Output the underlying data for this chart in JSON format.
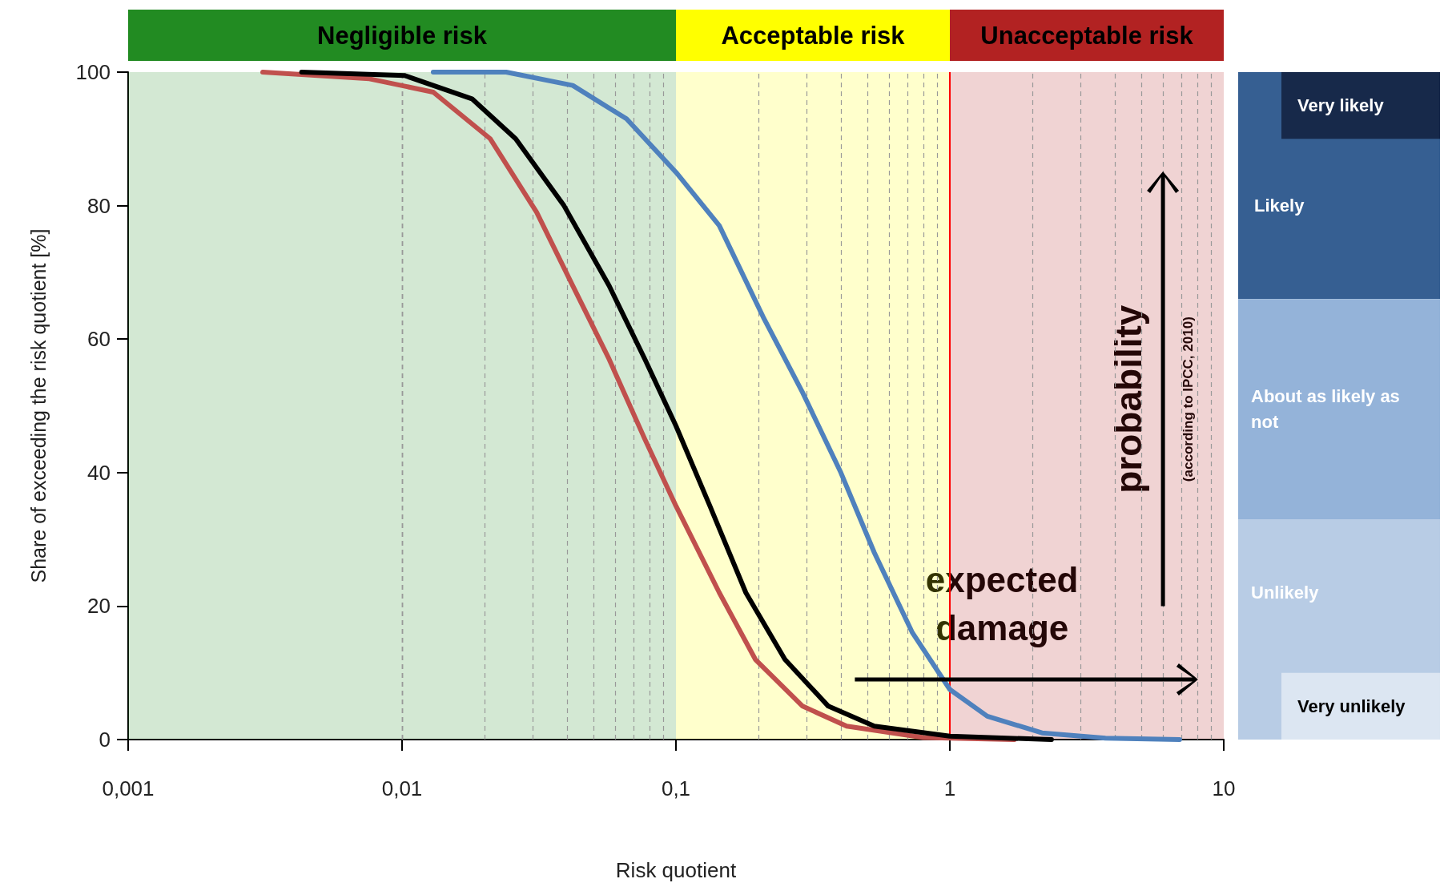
{
  "chart_data": {
    "type": "line",
    "xlabel": "Risk quotient",
    "ylabel": "Share of exceeding the risk quotient [%]",
    "log": "x",
    "xlim": [
      0.001,
      10
    ],
    "xticks": [
      {
        "value": 0.001,
        "label": "0,001"
      },
      {
        "value": 0.01,
        "label": "0,01"
      },
      {
        "value": 0.1,
        "label": "0,1"
      },
      {
        "value": 1,
        "label": "1"
      },
      {
        "value": 10,
        "label": "10"
      }
    ],
    "ylim": [
      0,
      100
    ],
    "yticks": [
      0,
      20,
      40,
      60,
      80,
      100
    ],
    "grid": "x",
    "marker": "none",
    "line_style": "solid",
    "series": [
      {
        "color": "#c0504d",
        "x": [
          0.0031,
          0.0076,
          0.013,
          0.021,
          0.031,
          0.042,
          0.057,
          0.077,
          0.1,
          0.144,
          0.195,
          0.29,
          0.42,
          0.8,
          1.72
        ],
        "values": [
          100,
          99,
          97,
          90,
          79,
          68,
          57,
          45,
          35,
          22,
          12,
          5,
          2,
          0.3,
          0
        ]
      },
      {
        "color": "#000000",
        "x": [
          0.0043,
          0.0102,
          0.018,
          0.026,
          0.039,
          0.057,
          0.077,
          0.1,
          0.133,
          0.18,
          0.25,
          0.36,
          0.53,
          1,
          2.35
        ],
        "values": [
          100,
          99.5,
          96,
          90,
          80,
          68,
          57,
          47,
          35,
          22,
          12,
          5,
          2,
          0.5,
          0
        ]
      },
      {
        "color": "#4f81bd",
        "x": [
          0.013,
          0.024,
          0.042,
          0.066,
          0.1,
          0.144,
          0.21,
          0.29,
          0.4,
          0.53,
          0.73,
          1,
          1.37,
          2.17,
          3.7,
          6.9
        ],
        "values": [
          100,
          100,
          98,
          93,
          85,
          77,
          63,
          52,
          40,
          28,
          16,
          7.5,
          3.5,
          1,
          0.2,
          0
        ]
      }
    ],
    "bands": [
      {
        "axis": "x",
        "from": 0.001,
        "to": 0.1,
        "label": "Negligible risk",
        "color": "#228b22"
      },
      {
        "axis": "x",
        "from": 0.1,
        "to": 1,
        "label": "Acceptable risk",
        "color": "#ffff00"
      },
      {
        "axis": "x",
        "from": 1,
        "to": 10,
        "label": "Unacceptable risk",
        "color": "#b22222"
      }
    ],
    "ref_lines": [
      {
        "axis": "x",
        "value": 1,
        "color": "#ff0000"
      }
    ],
    "annotations": [
      "expected\ndamage",
      "probability",
      "(according to IPCC, 2010)",
      "Very likely",
      "Likely",
      "About as likely as\nnot",
      "Unlikely",
      "Very unlikely"
    ]
  }
}
